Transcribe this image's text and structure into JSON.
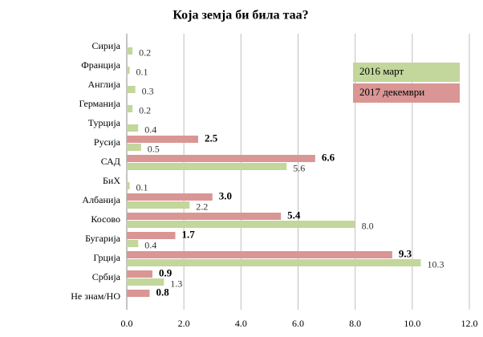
{
  "chart_data": {
    "type": "barh",
    "title": "Која земја би била таа?",
    "categories": [
      "Сирија",
      "Франција",
      "Англија",
      "Германија",
      "Турција",
      "Русија",
      "САД",
      "БиХ",
      "Албанија",
      "Косово",
      "Бугарија",
      "Грција",
      "Србија",
      "Не знам/НО"
    ],
    "series": [
      {
        "name": "2016 март",
        "color": "#c3d69b",
        "values": [
          0.2,
          0.1,
          0.3,
          0.2,
          0.4,
          0.5,
          5.6,
          0.1,
          2.2,
          8.0,
          0.4,
          10.3,
          1.3,
          null
        ],
        "value_labels": [
          "0.2",
          "0.1",
          "0.3",
          "0.2",
          "0.4",
          "0.5",
          "5.6",
          "0.1",
          "2.2",
          "8.0",
          "0.4",
          "10.3",
          "1.3",
          null
        ]
      },
      {
        "name": "2017 декември",
        "color": "#d99694",
        "values": [
          null,
          null,
          null,
          null,
          null,
          2.5,
          6.6,
          null,
          3.0,
          5.4,
          1.7,
          9.3,
          0.9,
          0.8
        ],
        "value_labels": [
          null,
          null,
          null,
          null,
          null,
          "2.5",
          "6.6",
          null,
          "3.0",
          "5.4",
          "1.7",
          "9.3",
          "0.9",
          "0.8"
        ]
      }
    ],
    "xlim": [
      0,
      12
    ],
    "xticks": [
      {
        "value": 0,
        "label": "0.0"
      },
      {
        "value": 2,
        "label": "2.0"
      },
      {
        "value": 4,
        "label": "4.0"
      },
      {
        "value": 6,
        "label": "6.0"
      },
      {
        "value": 8,
        "label": "8.0"
      },
      {
        "value": 10,
        "label": "10.0"
      },
      {
        "value": 12,
        "label": "12.0"
      }
    ],
    "grid": true,
    "legend": "upper right"
  }
}
